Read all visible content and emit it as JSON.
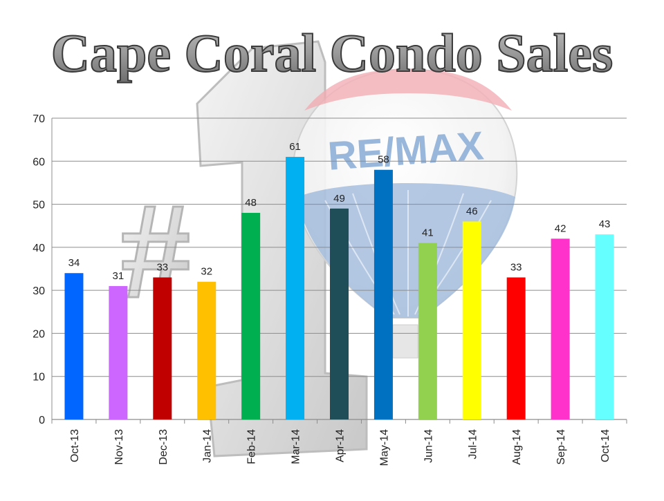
{
  "chart_data": {
    "type": "bar",
    "title": "Cape Coral Condo Sales",
    "categories": [
      "Oct-13",
      "Nov-13",
      "Dec-13",
      "Jan-14",
      "Feb-14",
      "Mar-14",
      "Apr-14",
      "May-14",
      "Jun-14",
      "Jul-14",
      "Aug-14",
      "Sep-14",
      "Oct-14"
    ],
    "values": [
      34,
      31,
      33,
      32,
      48,
      61,
      49,
      58,
      41,
      46,
      33,
      42,
      43
    ],
    "colors": [
      "#0066FF",
      "#CC66FF",
      "#C00000",
      "#FFC000",
      "#00B050",
      "#00B0F0",
      "#1F4E59",
      "#0070C0",
      "#92D050",
      "#FFFF00",
      "#FF0000",
      "#FF33CC",
      "#66FFFF"
    ],
    "ylim": [
      0,
      70
    ],
    "yticks": [
      0,
      10,
      20,
      30,
      40,
      50,
      60,
      70
    ],
    "xlabel": "",
    "ylabel": "",
    "grid": true,
    "data_labels": true,
    "background": {
      "balloon_logo_text": "RE/MAX",
      "number_one_text": "#1"
    }
  }
}
